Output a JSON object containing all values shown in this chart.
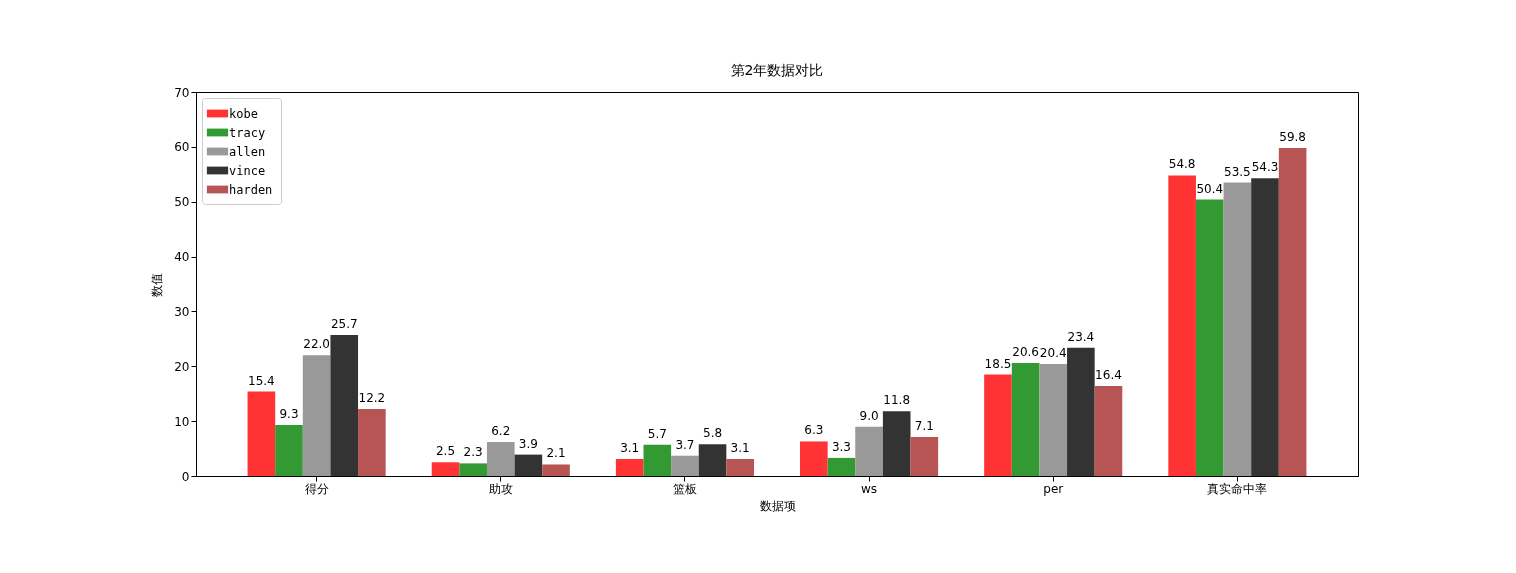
{
  "chart_data": {
    "type": "bar",
    "title": "第2年数据对比",
    "xlabel": "数据项",
    "ylabel": "数值",
    "categories": [
      "得分",
      "助攻",
      "篮板",
      "ws",
      "per",
      "真实命中率"
    ],
    "series": [
      {
        "name": "kobe",
        "color": "#ff3333",
        "values": [
          15.4,
          2.5,
          3.1,
          6.3,
          18.5,
          54.8
        ],
        "value_labels": [
          "15.4",
          "2.5",
          "3.1",
          "6.3",
          "18.5",
          "54.8"
        ]
      },
      {
        "name": "tracy",
        "color": "#339933",
        "values": [
          9.3,
          2.3,
          5.7,
          3.3,
          20.6,
          50.4
        ],
        "value_labels": [
          "9.3",
          "2.3",
          "5.7",
          "3.3",
          "20.6",
          "50.4"
        ]
      },
      {
        "name": "allen",
        "color": "#999999",
        "values": [
          22.0,
          6.2,
          3.7,
          9.0,
          20.4,
          53.5
        ],
        "value_labels": [
          "22.0",
          "6.2",
          "3.7",
          "9.0",
          "20.4",
          "53.5"
        ]
      },
      {
        "name": "vince",
        "color": "#333333",
        "values": [
          25.7,
          3.9,
          5.8,
          11.8,
          23.4,
          54.3
        ],
        "value_labels": [
          "25.7",
          "3.9",
          "5.8",
          "11.8",
          "23.4",
          "54.3"
        ]
      },
      {
        "name": "harden",
        "color": "#b75555",
        "values": [
          12.2,
          2.1,
          3.1,
          7.1,
          16.4,
          59.8
        ],
        "value_labels": [
          "12.2",
          "2.1",
          "3.1",
          "7.1",
          "16.4",
          "59.8"
        ]
      }
    ],
    "ylim": [
      0,
      70
    ],
    "yticks": [
      0,
      10,
      20,
      30,
      40,
      50,
      60,
      70
    ],
    "legend": "top left",
    "grid": false
  }
}
